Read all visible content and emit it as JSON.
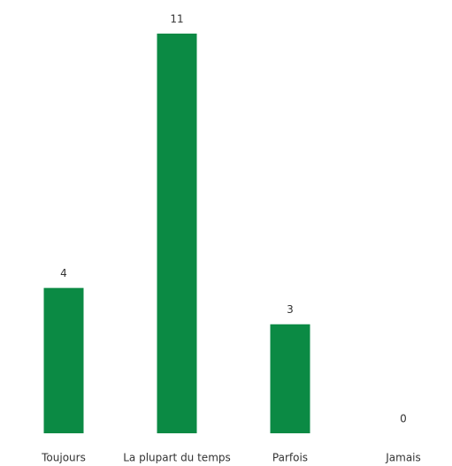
{
  "chart_data": {
    "type": "bar",
    "categories": [
      "Toujours",
      "La plupart du temps",
      "Parfois",
      "Jamais"
    ],
    "values": [
      4,
      11,
      3,
      0
    ],
    "color": "#0b8a44"
  }
}
